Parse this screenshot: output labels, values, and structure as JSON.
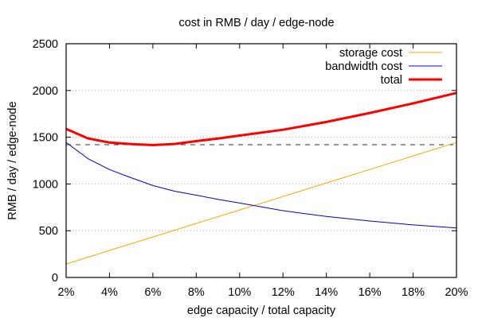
{
  "chart_data": {
    "type": "line",
    "title": "cost in RMB / day / edge-node",
    "xlabel": "edge capacity / total capacity",
    "ylabel": "RMB / day / edge-node",
    "xlim": [
      2,
      20
    ],
    "ylim": [
      0,
      2500
    ],
    "x_unit_suffix": "%",
    "xticks": [
      2,
      4,
      6,
      8,
      10,
      12,
      14,
      16,
      18,
      20
    ],
    "xtick_labels": [
      "2%",
      "4%",
      "6%",
      "8%",
      "10%",
      "12%",
      "14%",
      "16%",
      "18%",
      "20%"
    ],
    "yticks": [
      0,
      500,
      1000,
      1500,
      2000,
      2500
    ],
    "ytick_labels": [
      "0",
      "500",
      "1000",
      "1500",
      "2000",
      "2500"
    ],
    "grid": "horizontal-dotted",
    "legend_position": "top-right",
    "x": [
      2,
      3,
      4,
      5,
      6,
      7,
      8,
      9,
      10,
      12,
      14,
      16,
      18,
      20
    ],
    "series": [
      {
        "name": "storage cost",
        "color": "#ffa500",
        "style": "thin",
        "values": [
          144,
          216,
          289,
          361,
          433,
          505,
          578,
          650,
          722,
          866,
          1011,
          1155,
          1300,
          1444
        ]
      },
      {
        "name": "bandwidth cost",
        "color": "#0000cc",
        "style": "thin",
        "values": [
          1445,
          1272,
          1154,
          1066,
          983,
          923,
          880,
          836,
          796,
          714,
          652,
          604,
          562,
          530
        ]
      },
      {
        "name": "total",
        "color": "#ff0000",
        "style": "thick",
        "values": [
          1589,
          1488,
          1443,
          1427,
          1416,
          1428,
          1458,
          1486,
          1518,
          1580,
          1663,
          1759,
          1862,
          1974
        ]
      }
    ],
    "reference_lines": [
      {
        "name": "minimum-total",
        "y": 1420,
        "style": "dashed",
        "color": "#333333"
      }
    ]
  }
}
